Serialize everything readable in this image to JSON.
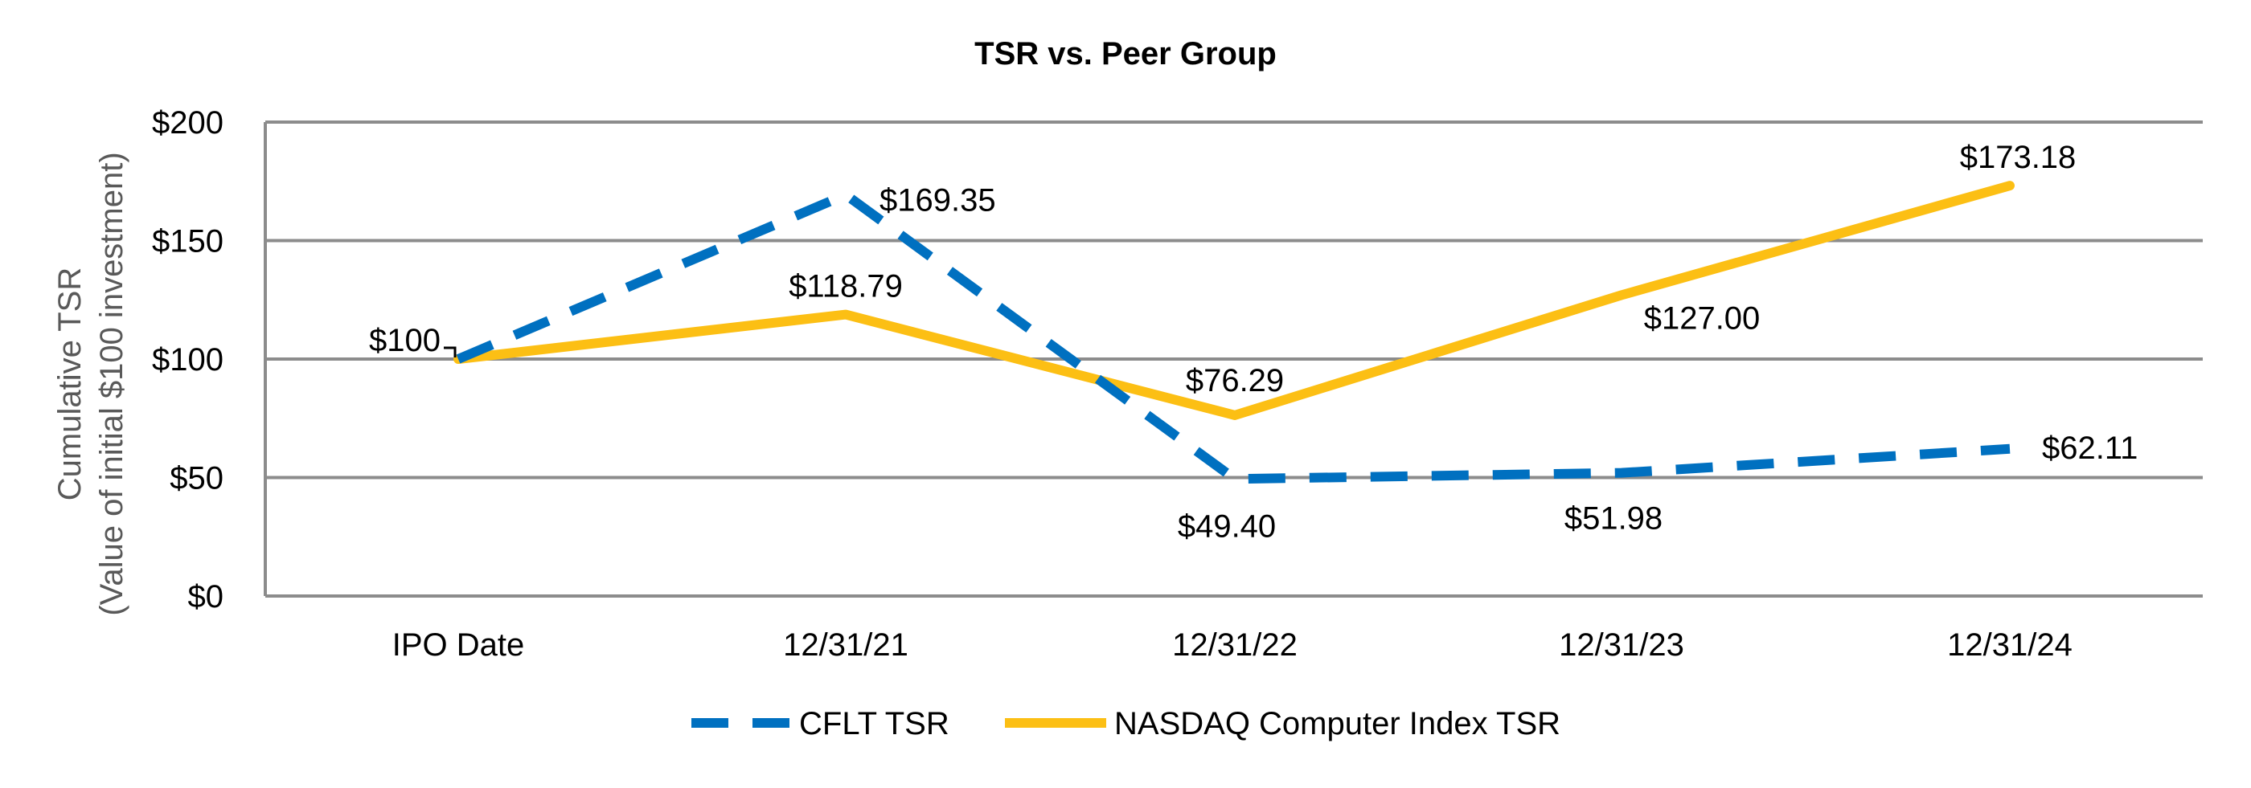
{
  "chart_data": {
    "type": "line",
    "title": "TSR vs. Peer Group",
    "ylabel_line1": "Cumulative TSR",
    "ylabel_line2": "(Value of initial $100 investment)",
    "xlabel": "",
    "categories": [
      "IPO Date",
      "12/31/21",
      "12/31/22",
      "12/31/23",
      "12/31/24"
    ],
    "ylim": [
      0,
      200
    ],
    "yticks": [
      0,
      50,
      100,
      150,
      200
    ],
    "ytick_labels": [
      "$0",
      "$50",
      "$100",
      "$150",
      "$200"
    ],
    "grid": true,
    "legend_position": "bottom",
    "series": [
      {
        "name": "CFLT TSR",
        "values": [
          100,
          169.35,
          49.4,
          51.98,
          62.11
        ],
        "labels": [
          "$100",
          "$169.35",
          "$49.40",
          "$51.98",
          "$62.11"
        ],
        "color": "#0070c0",
        "style": "dashed"
      },
      {
        "name": "NASDAQ Computer Index TSR",
        "values": [
          100,
          118.79,
          76.29,
          127.0,
          173.18
        ],
        "labels": [
          "",
          "$118.79",
          "$76.29",
          "$127.00",
          "$173.18"
        ],
        "color": "#fcbf14",
        "style": "solid"
      }
    ]
  }
}
